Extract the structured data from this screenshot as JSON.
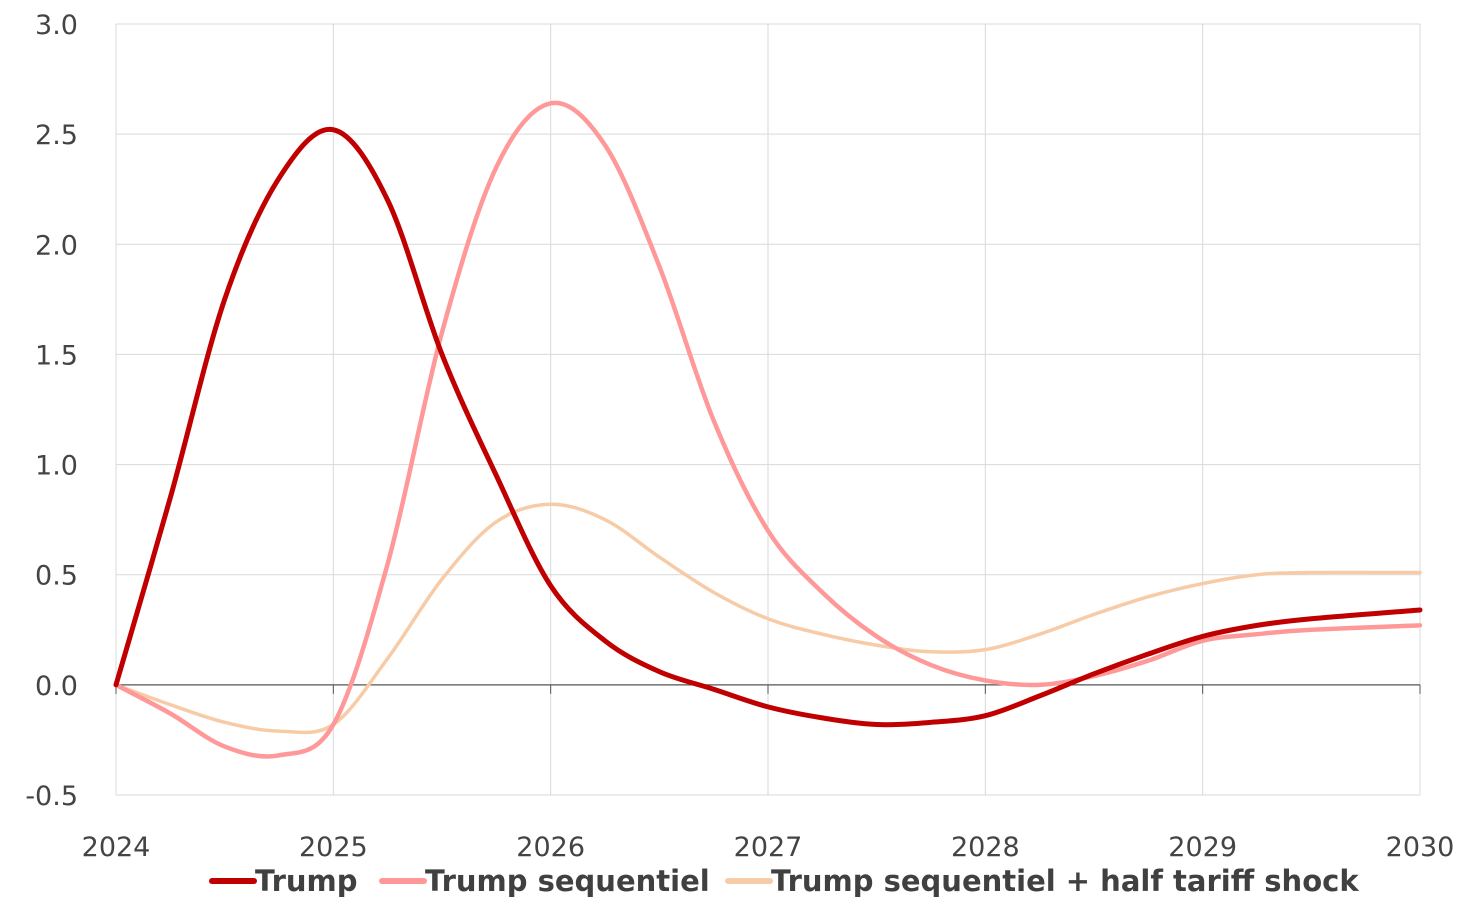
{
  "chart_data": {
    "type": "line",
    "title": "",
    "xlabel": "",
    "ylabel": "",
    "xlim": [
      2024,
      2030
    ],
    "ylim": [
      -0.5,
      3.0
    ],
    "x_ticks": [
      2024,
      2025,
      2026,
      2027,
      2028,
      2029,
      2030
    ],
    "x_tick_labels": [
      "2024",
      "2025",
      "2026",
      "2027",
      "2028",
      "2029",
      "2030"
    ],
    "y_ticks": [
      -0.5,
      0,
      0.5,
      1.0,
      1.5,
      2.0,
      2.5,
      3.0
    ],
    "y_tick_labels": [
      "-0.5",
      "0.0",
      "0.5",
      "1.0",
      "1.5",
      "2.0",
      "2.5",
      "3.0"
    ],
    "grid": true,
    "legend_position": "bottom",
    "series": [
      {
        "name": "Trump",
        "color": "#c00000",
        "x": [
          2024,
          2024.25,
          2024.5,
          2024.75,
          2025,
          2025.25,
          2025.5,
          2025.75,
          2026,
          2026.25,
          2026.5,
          2026.75,
          2027,
          2027.25,
          2027.5,
          2027.75,
          2028,
          2028.25,
          2028.5,
          2028.75,
          2029,
          2029.25,
          2029.5,
          2030
        ],
        "y": [
          0.0,
          0.85,
          1.75,
          2.3,
          2.52,
          2.2,
          1.5,
          0.95,
          0.45,
          0.2,
          0.06,
          -0.02,
          -0.1,
          -0.15,
          -0.18,
          -0.17,
          -0.14,
          -0.05,
          0.05,
          0.14,
          0.22,
          0.27,
          0.3,
          0.34
        ]
      },
      {
        "name": "Trump sequentiel",
        "color": "#ff9999",
        "x": [
          2024,
          2024.25,
          2024.5,
          2024.75,
          2025,
          2025.25,
          2025.5,
          2025.75,
          2026,
          2026.25,
          2026.5,
          2026.75,
          2027,
          2027.25,
          2027.5,
          2027.75,
          2028,
          2028.25,
          2028.5,
          2028.75,
          2029,
          2029.25,
          2029.5,
          2030
        ],
        "y": [
          0.0,
          -0.13,
          -0.28,
          -0.32,
          -0.18,
          0.55,
          1.6,
          2.35,
          2.64,
          2.45,
          1.9,
          1.2,
          0.7,
          0.42,
          0.22,
          0.09,
          0.02,
          0.0,
          0.04,
          0.11,
          0.2,
          0.23,
          0.25,
          0.27
        ]
      },
      {
        "name": "Trump sequentiel + half tariff shock",
        "color": "#f7cba6",
        "x": [
          2024,
          2024.25,
          2024.5,
          2024.75,
          2025,
          2025.25,
          2025.5,
          2025.75,
          2026,
          2026.25,
          2026.5,
          2026.75,
          2027,
          2027.25,
          2027.5,
          2027.75,
          2028,
          2028.25,
          2028.5,
          2028.75,
          2029,
          2029.25,
          2029.5,
          2030
        ],
        "y": [
          0.0,
          -0.09,
          -0.17,
          -0.21,
          -0.18,
          0.12,
          0.48,
          0.74,
          0.82,
          0.75,
          0.58,
          0.42,
          0.3,
          0.23,
          0.18,
          0.15,
          0.16,
          0.23,
          0.32,
          0.4,
          0.46,
          0.5,
          0.51,
          0.51
        ]
      }
    ]
  }
}
